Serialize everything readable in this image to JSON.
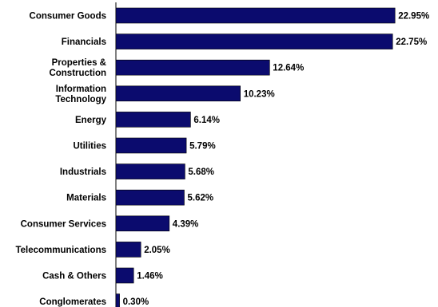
{
  "chart_data": {
    "type": "bar",
    "orientation": "horizontal",
    "categories": [
      [
        "Consumer Goods"
      ],
      [
        "Financials"
      ],
      [
        "Properties &",
        "Construction"
      ],
      [
        "Information",
        "Technology"
      ],
      [
        "Energy"
      ],
      [
        "Utilities"
      ],
      [
        "Industrials"
      ],
      [
        "Materials"
      ],
      [
        "Consumer Services"
      ],
      [
        "Telecommunications"
      ],
      [
        "Cash & Others"
      ],
      [
        "Conglomerates"
      ]
    ],
    "values": [
      22.95,
      22.75,
      12.64,
      10.23,
      6.14,
      5.79,
      5.68,
      5.62,
      4.39,
      2.05,
      1.46,
      0.3
    ],
    "value_labels": [
      "22.95%",
      "22.75%",
      "12.64%",
      "10.23%",
      "6.14%",
      "5.79%",
      "5.68%",
      "5.62%",
      "4.39%",
      "2.05%",
      "1.46%",
      "0.30%"
    ],
    "xlim": [
      0,
      23
    ],
    "bar_color": "#0b0b6e",
    "grid": false,
    "legend": "none"
  }
}
